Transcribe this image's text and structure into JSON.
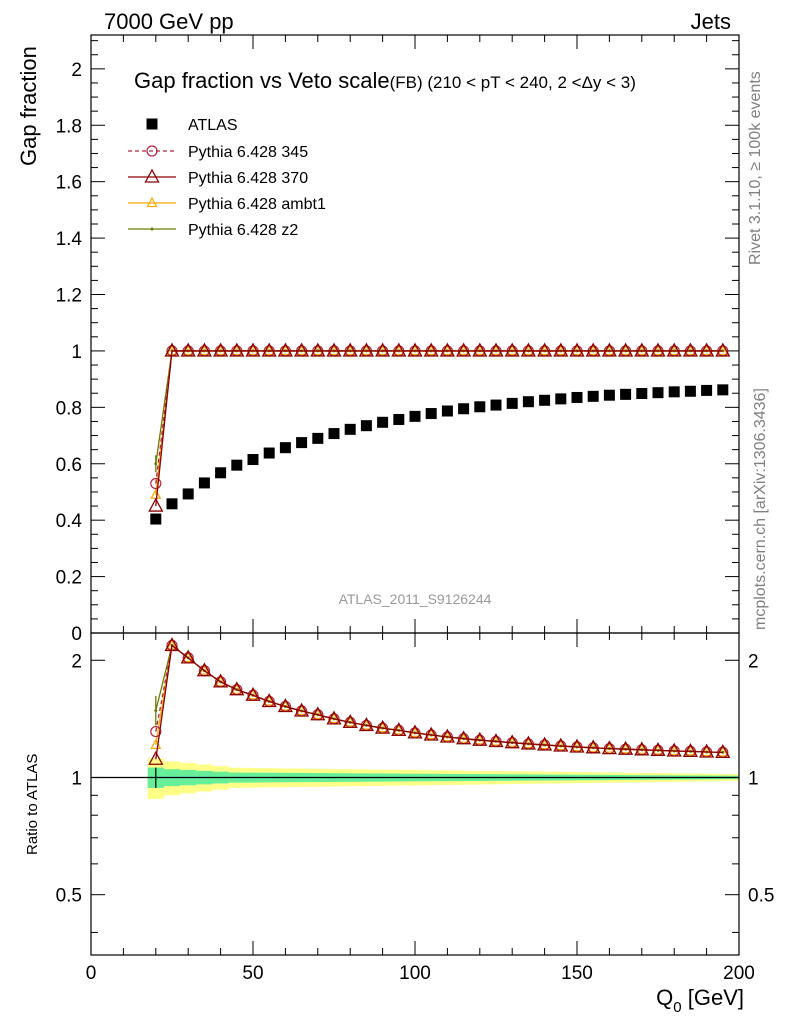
{
  "header": {
    "energy_label": "7000 GeV pp",
    "category_label": "Jets"
  },
  "side_text": {
    "rivet": "Rivet 3.1.10, ≥ 100k events",
    "mcplots": "mcplots.cern.ch [arXiv:1306.3436]"
  },
  "chart_data": {
    "type": "scatter",
    "title": "Gap fraction vs Veto scale",
    "subtitle": "(FB) (210 < pT < 240, 2 <Δy < 3)",
    "analysis_label": "ATLAS_2011_S9126244",
    "xlabel_main": "Q",
    "xlabel_sub": "0",
    "xlabel_unit": " [GeV]",
    "ylabel": "Gap fraction",
    "ratio_ylabel": "Ratio to ATLAS",
    "xlim": [
      0,
      200
    ],
    "ylim": [
      0,
      2.12
    ],
    "ratio_ylim": [
      0.35,
      2.35
    ],
    "x_ticks": [
      "0",
      "50",
      "100",
      "150",
      "200"
    ],
    "y_ticks": [
      "0",
      "0.2",
      "0.4",
      "0.6",
      "0.8",
      "1",
      "1.2",
      "1.4",
      "1.6",
      "1.8",
      "2"
    ],
    "ratio_y_ticks": [
      "0.5",
      "1",
      "2"
    ],
    "legend_position": "top-left",
    "colors": {
      "data": "#000000",
      "p345": "#b22540",
      "p370": "#8b0000",
      "ambt1": "#f5a800",
      "z2": "#6b7c00",
      "band_inner": "#66ee99",
      "band_outer": "#ffff88"
    },
    "x": [
      20,
      25,
      30,
      35,
      40,
      45,
      50,
      55,
      60,
      65,
      70,
      75,
      80,
      85,
      90,
      95,
      100,
      105,
      110,
      115,
      120,
      125,
      130,
      135,
      140,
      145,
      150,
      155,
      160,
      165,
      170,
      175,
      180,
      185,
      190,
      195
    ],
    "series": [
      {
        "name": "ATLAS",
        "marker": "square",
        "values": [
          0.404,
          0.458,
          0.493,
          0.532,
          0.568,
          0.595,
          0.615,
          0.638,
          0.657,
          0.675,
          0.69,
          0.707,
          0.722,
          0.735,
          0.747,
          0.757,
          0.768,
          0.778,
          0.787,
          0.795,
          0.802,
          0.808,
          0.814,
          0.82,
          0.825,
          0.83,
          0.835,
          0.839,
          0.843,
          0.846,
          0.849,
          0.852,
          0.855,
          0.857,
          0.86,
          0.862
        ]
      },
      {
        "name": "Pythia 6.428 345",
        "marker": "circle",
        "values": [
          0.53,
          1,
          1,
          1,
          1,
          1,
          1,
          1,
          1,
          1,
          1,
          1,
          1,
          1,
          1,
          1,
          1,
          1,
          1,
          1,
          1,
          1,
          1,
          1,
          1,
          1,
          1,
          1,
          1,
          1,
          1,
          1,
          1,
          1,
          1,
          1
        ]
      },
      {
        "name": "Pythia 6.428 370",
        "marker": "triangle",
        "values": [
          0.45,
          1,
          1,
          1,
          1,
          1,
          1,
          1,
          1,
          1,
          1,
          1,
          1,
          1,
          1,
          1,
          1,
          1,
          1,
          1,
          1,
          1,
          1,
          1,
          1,
          1,
          1,
          1,
          1,
          1,
          1,
          1,
          1,
          1,
          1,
          1
        ]
      },
      {
        "name": "Pythia 6.428 ambt1",
        "marker": "small-triangle",
        "values": [
          0.49,
          1,
          1,
          1,
          1,
          1,
          1,
          1,
          1,
          1,
          1,
          1,
          1,
          1,
          1,
          1,
          1,
          1,
          1,
          1,
          1,
          1,
          1,
          1,
          1,
          1,
          1,
          1,
          1,
          1,
          1,
          1,
          1,
          1,
          1,
          1
        ]
      },
      {
        "name": "Pythia 6.428 z2",
        "marker": "dot",
        "values": [
          0.6,
          1,
          1,
          1,
          1,
          1,
          1,
          1,
          1,
          1,
          1,
          1,
          1,
          1,
          1,
          1,
          1,
          1,
          1,
          1,
          1,
          1,
          1,
          1,
          1,
          1,
          1,
          1,
          1,
          1,
          1,
          1,
          1,
          1,
          1,
          1
        ]
      }
    ],
    "ratio_band": {
      "x_edges": [
        17.5,
        22.5,
        27.5,
        32.5,
        37.5,
        42.5,
        200
      ],
      "inner": [
        0.06,
        0.05,
        0.045,
        0.04,
        0.035,
        0.03
      ],
      "outer": [
        0.12,
        0.1,
        0.09,
        0.08,
        0.07,
        0.06
      ],
      "inner_tail_end": 0.01,
      "outer_tail_end": 0.02
    }
  }
}
